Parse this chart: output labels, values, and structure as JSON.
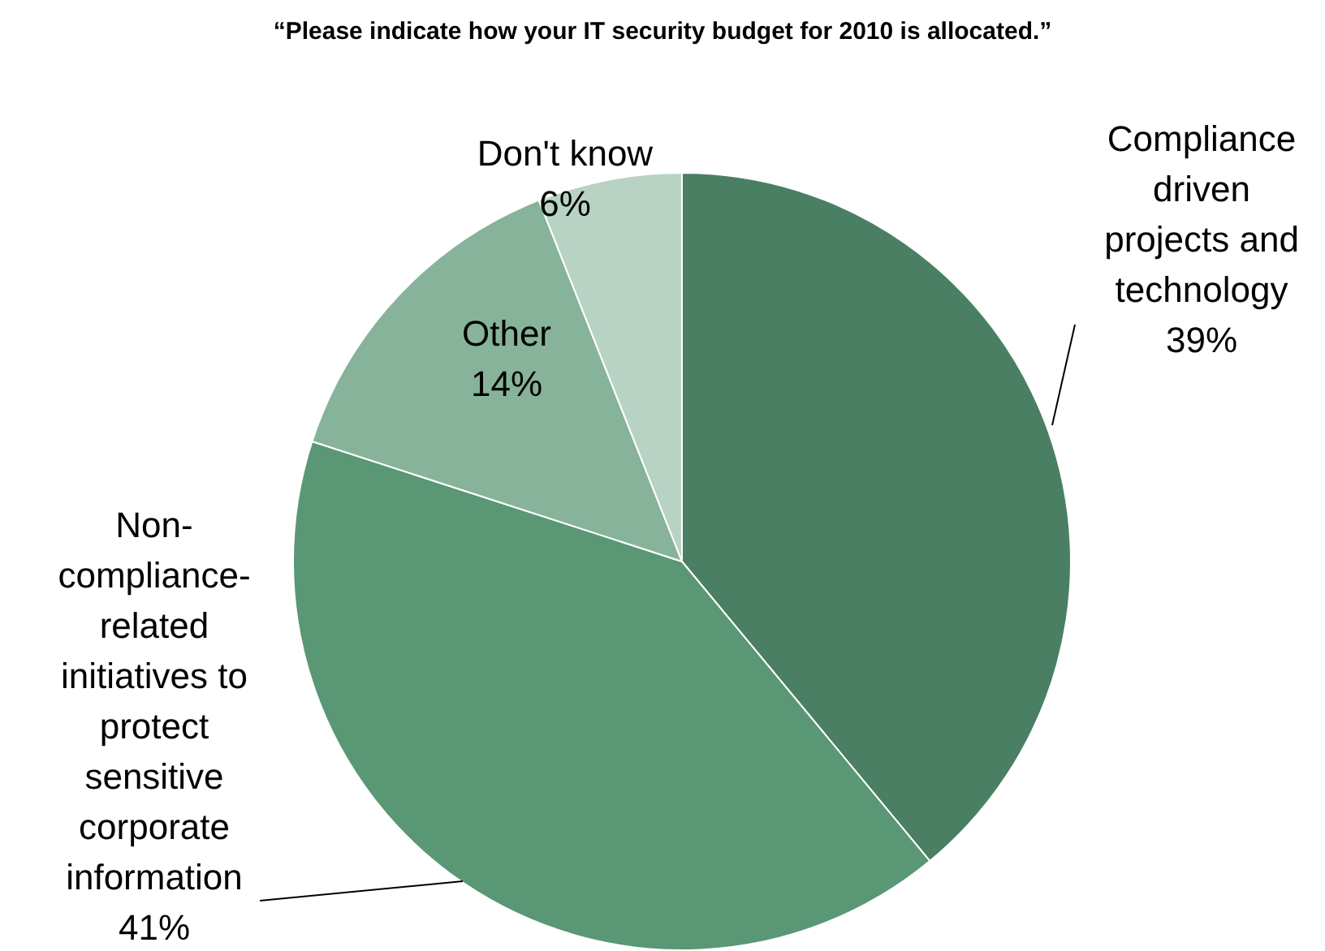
{
  "chart_data": {
    "type": "pie",
    "title": "“Please indicate how your IT security budget for 2010 is allocated.”",
    "categories": [
      "Compliance driven projects and technology",
      "Non-compliance-related initiatives to protect sensitive corporate information",
      "Other",
      "Don't know"
    ],
    "values": [
      39,
      41,
      14,
      6
    ],
    "value_labels": [
      "39%",
      "41%",
      "14%",
      "6%"
    ],
    "colors": [
      "#4a7f63",
      "#5a9775",
      "#86b39a",
      "#b8d3c4"
    ]
  }
}
